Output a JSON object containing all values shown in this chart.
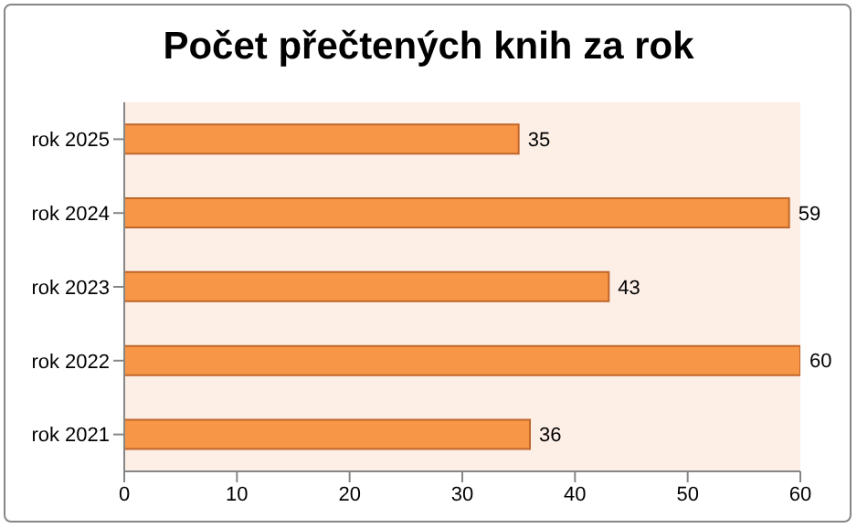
{
  "chart_data": {
    "type": "bar",
    "orientation": "horizontal",
    "title": "Počet přečtených knih za rok",
    "categories": [
      "rok 2025",
      "rok 2024",
      "rok 2023",
      "rok 2022",
      "rok 2021"
    ],
    "values": [
      35,
      59,
      43,
      60,
      36
    ],
    "color": "#f79646",
    "xlim": [
      0,
      60
    ],
    "xticks": [
      0,
      10,
      20,
      30,
      40,
      50,
      60
    ],
    "grid": false,
    "data_labels": true
  }
}
